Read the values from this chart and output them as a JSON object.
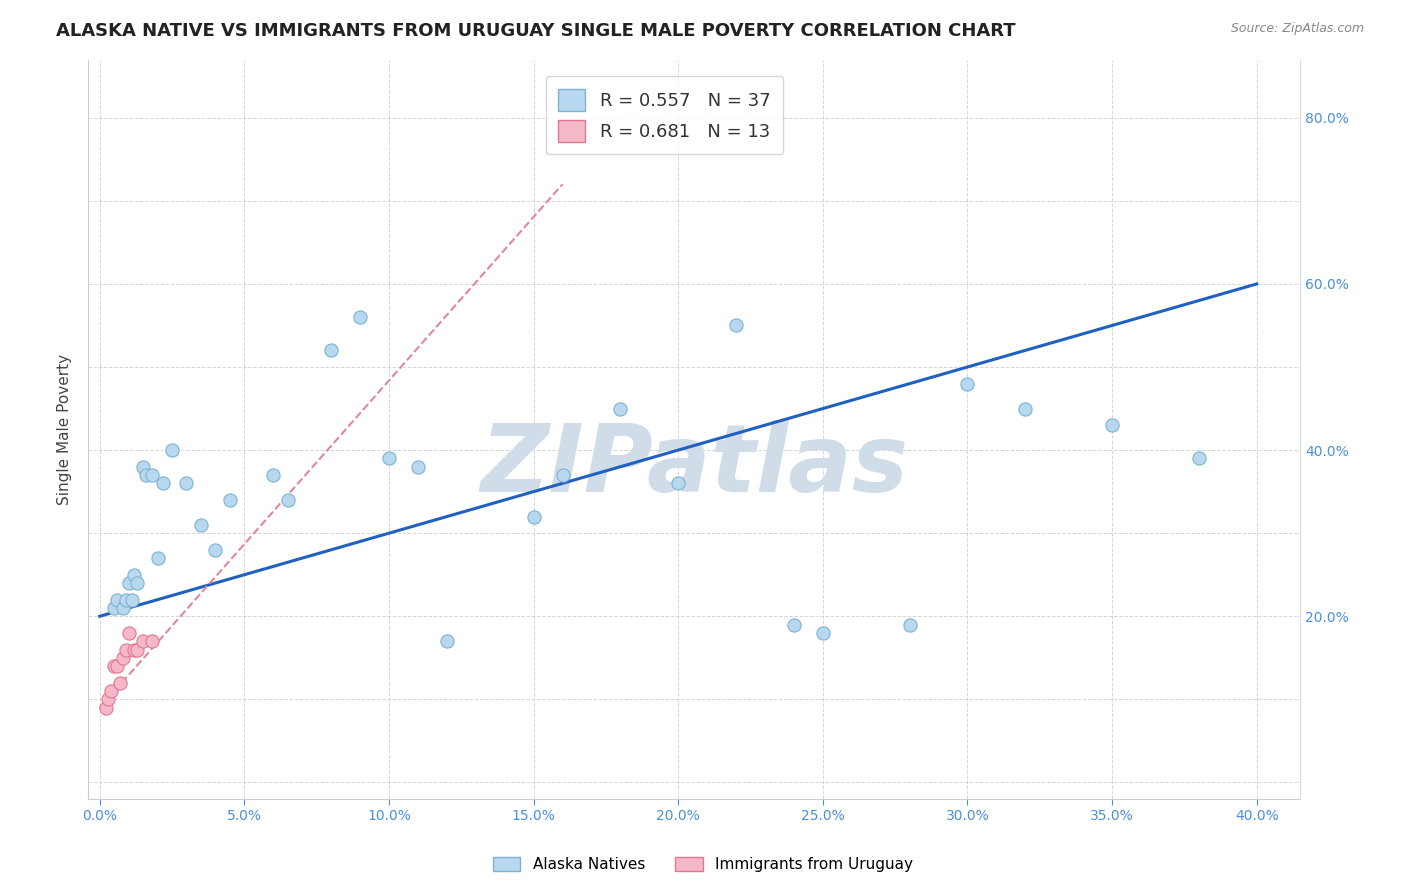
{
  "title": "ALASKA NATIVE VS IMMIGRANTS FROM URUGUAY SINGLE MALE POVERTY CORRELATION CHART",
  "source": "Source: ZipAtlas.com",
  "ylabel_label": "Single Male Poverty",
  "alaska_R": 0.557,
  "alaska_N": 37,
  "uruguay_R": 0.681,
  "uruguay_N": 13,
  "alaska_color": "#b8d8f0",
  "alaska_edge": "#7ab3d4",
  "uruguay_color": "#f4b8c8",
  "uruguay_edge": "#e07890",
  "trend_alaska_color": "#2060c0",
  "trend_uruguay_color": "#e08898",
  "watermark_text": "ZIPatlas",
  "watermark_color": "#d0dde8",
  "background_color": "#ffffff",
  "grid_color": "#cccccc",
  "title_fontsize": 13,
  "axis_label_fontsize": 11,
  "tick_fontsize": 10,
  "legend_fontsize": 13,
  "xlim": [
    -0.004,
    0.415
  ],
  "ylim": [
    -0.02,
    0.87
  ],
  "x_tick_vals": [
    0.0,
    0.05,
    0.1,
    0.15,
    0.2,
    0.25,
    0.3,
    0.35,
    0.4
  ],
  "y_tick_vals": [
    0.0,
    0.1,
    0.2,
    0.3,
    0.4,
    0.5,
    0.6,
    0.7,
    0.8
  ],
  "y_tick_labels_right": [
    "",
    "20.0%",
    "40.0%",
    "60.0%",
    "80.0%"
  ],
  "alaska_x": [
    0.005,
    0.006,
    0.008,
    0.009,
    0.01,
    0.011,
    0.012,
    0.013,
    0.015,
    0.016,
    0.018,
    0.02,
    0.022,
    0.025,
    0.03,
    0.035,
    0.04,
    0.045,
    0.06,
    0.065,
    0.08,
    0.09,
    0.1,
    0.11,
    0.12,
    0.15,
    0.16,
    0.18,
    0.2,
    0.22,
    0.24,
    0.25,
    0.28,
    0.3,
    0.32,
    0.35,
    0.38
  ],
  "alaska_y": [
    0.21,
    0.22,
    0.21,
    0.22,
    0.24,
    0.22,
    0.25,
    0.24,
    0.38,
    0.37,
    0.37,
    0.27,
    0.36,
    0.4,
    0.36,
    0.31,
    0.28,
    0.34,
    0.37,
    0.34,
    0.52,
    0.56,
    0.39,
    0.38,
    0.17,
    0.32,
    0.37,
    0.45,
    0.36,
    0.55,
    0.19,
    0.18,
    0.19,
    0.48,
    0.45,
    0.43,
    0.39
  ],
  "uruguay_x": [
    0.002,
    0.003,
    0.004,
    0.005,
    0.006,
    0.007,
    0.008,
    0.009,
    0.01,
    0.012,
    0.013,
    0.015,
    0.018
  ],
  "uruguay_y": [
    0.09,
    0.1,
    0.11,
    0.14,
    0.14,
    0.12,
    0.15,
    0.16,
    0.18,
    0.16,
    0.16,
    0.17,
    0.17
  ],
  "alaska_trend_x": [
    0.0,
    0.4
  ],
  "alaska_trend_y": [
    0.2,
    0.6
  ],
  "uruguay_trend_x": [
    0.0,
    0.16
  ],
  "uruguay_trend_y": [
    0.09,
    0.72
  ]
}
